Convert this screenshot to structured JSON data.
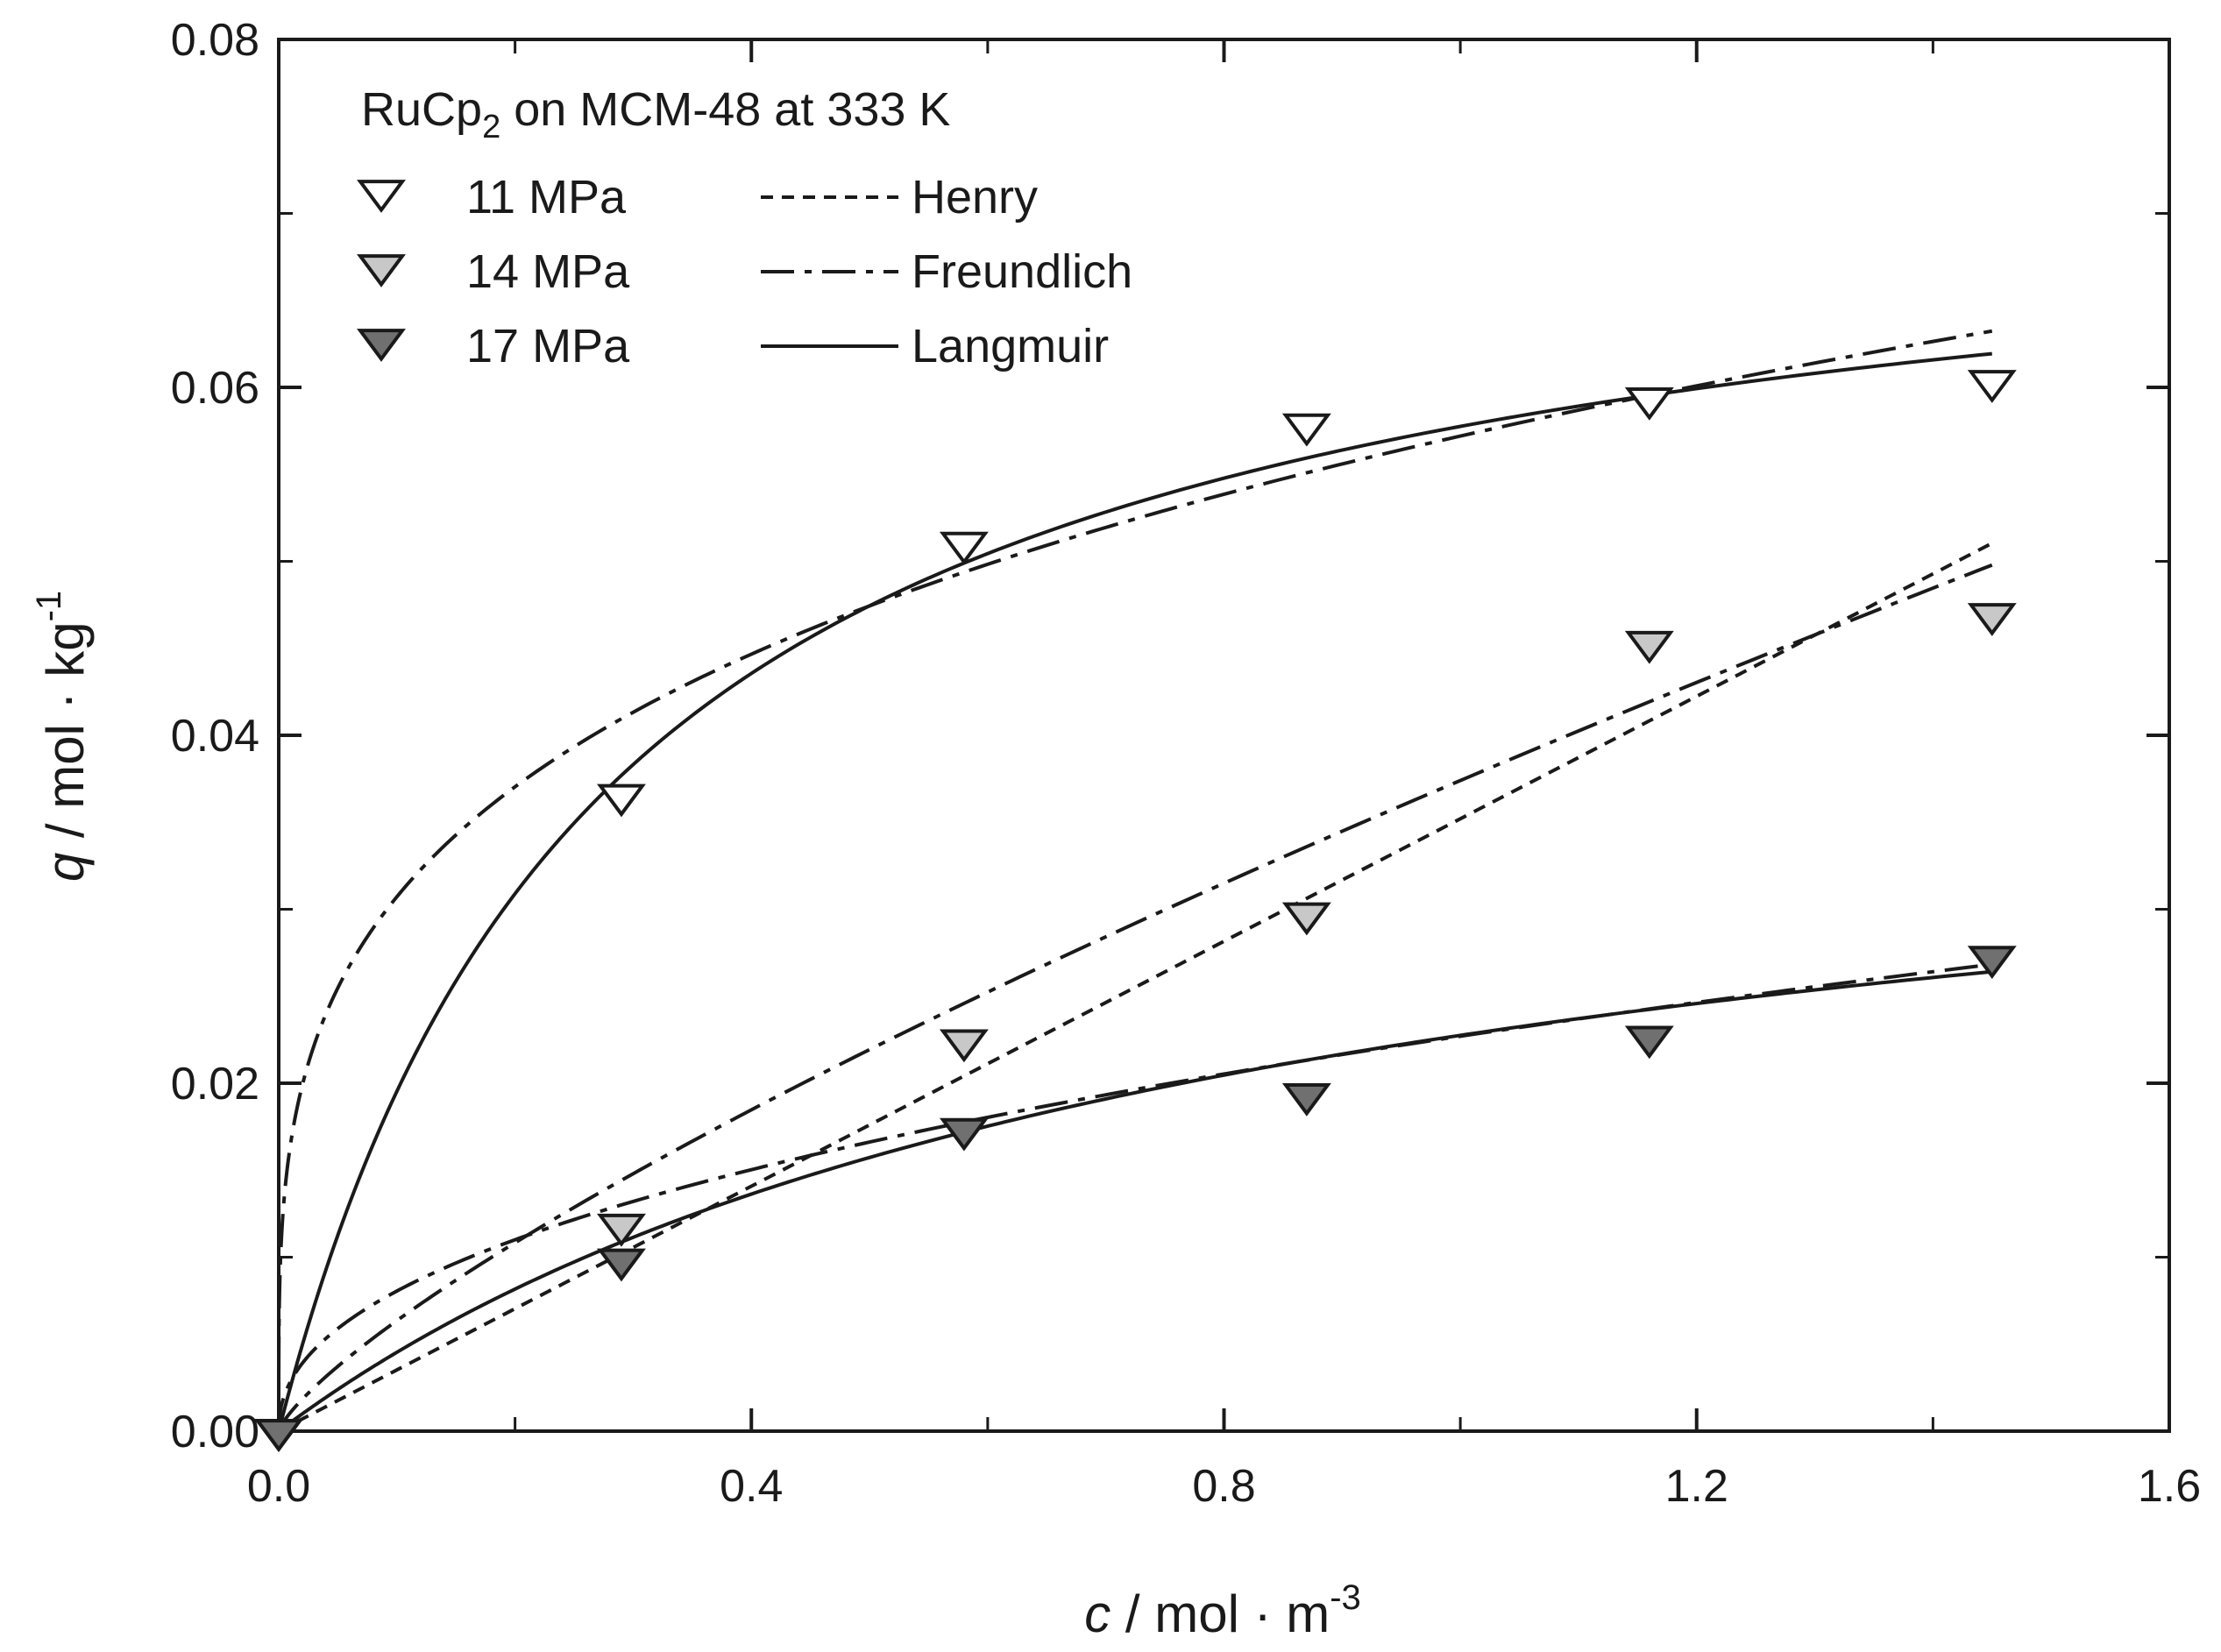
{
  "chart_data": {
    "type": "scatter",
    "title": "RuCp₂ on MCM-48 at 333 K",
    "title_parts": {
      "prefix": "RuCp",
      "sub": "2",
      "suffix": " on MCM-48 at 333 K"
    },
    "xlabel": {
      "var": "c",
      "unit": " / mol · m",
      "exp": "-3"
    },
    "ylabel": {
      "var": "q",
      "unit": " / mol · kg",
      "exp": "-1"
    },
    "xlim": [
      0.0,
      1.6
    ],
    "ylim": [
      0.0,
      0.08
    ],
    "x_ticks": [
      {
        "value": 0.0,
        "label": "0.0"
      },
      {
        "value": 0.4,
        "label": "0.4"
      },
      {
        "value": 0.8,
        "label": "0.8"
      },
      {
        "value": 1.2,
        "label": "1.2"
      },
      {
        "value": 1.6,
        "label": "1.6"
      }
    ],
    "y_ticks": [
      {
        "value": 0.0,
        "label": "0.00"
      },
      {
        "value": 0.02,
        "label": "0.02"
      },
      {
        "value": 0.04,
        "label": "0.04"
      },
      {
        "value": 0.06,
        "label": "0.06"
      },
      {
        "value": 0.08,
        "label": "0.08"
      }
    ],
    "x_minor_ticks": [
      0.2,
      0.6,
      1.0,
      1.4
    ],
    "y_minor_ticks": [
      0.01,
      0.03,
      0.05,
      0.07
    ],
    "series": [
      {
        "name": "11 MPa",
        "fill": "#ffffff",
        "x": [
          0.0,
          0.29,
          0.58,
          0.87,
          1.16,
          1.45
        ],
        "y": [
          0.0,
          0.0365,
          0.051,
          0.0578,
          0.0593,
          0.0603
        ]
      },
      {
        "name": "14 MPa",
        "fill": "#c8c8c8",
        "x": [
          0.0,
          0.29,
          0.58,
          0.87,
          1.16,
          1.45
        ],
        "y": [
          0.0,
          0.0118,
          0.0224,
          0.0297,
          0.0453,
          0.0469
        ]
      },
      {
        "name": "17 MPa",
        "fill": "#707070",
        "x": [
          0.0,
          0.29,
          0.58,
          0.87,
          1.16,
          1.45
        ],
        "y": [
          0.0,
          0.0098,
          0.0173,
          0.0193,
          0.0226,
          0.0272
        ]
      }
    ],
    "models": [
      {
        "name": "Henry",
        "style": "dashed"
      },
      {
        "name": "Freundlich",
        "style": "dashdot"
      },
      {
        "name": "Langmuir",
        "style": "solid"
      }
    ],
    "fits": [
      {
        "series": "11 MPa",
        "model": "Langmuir",
        "form": "langmuir",
        "qmax": 0.0738,
        "K": 3.6,
        "xmax": 1.45
      },
      {
        "series": "11 MPa",
        "model": "Freundlich",
        "form": "freundlich",
        "k": 0.0572,
        "n": 0.27,
        "xmax": 1.45
      },
      {
        "series": "14 MPa",
        "model": "Henry",
        "form": "henry",
        "k": 0.0352,
        "xmax": 1.45
      },
      {
        "series": "14 MPa",
        "model": "Freundlich",
        "form": "freundlich",
        "k": 0.0374,
        "n": 0.77,
        "xmax": 1.45
      },
      {
        "series": "17 MPa",
        "model": "Langmuir",
        "form": "langmuir",
        "qmax": 0.0411,
        "K": 1.24,
        "xmax": 1.45
      },
      {
        "series": "17 MPa",
        "model": "Freundlich",
        "form": "freundlich",
        "k": 0.0227,
        "n": 0.45,
        "xmax": 1.45
      }
    ],
    "legend_position": "top-left"
  }
}
